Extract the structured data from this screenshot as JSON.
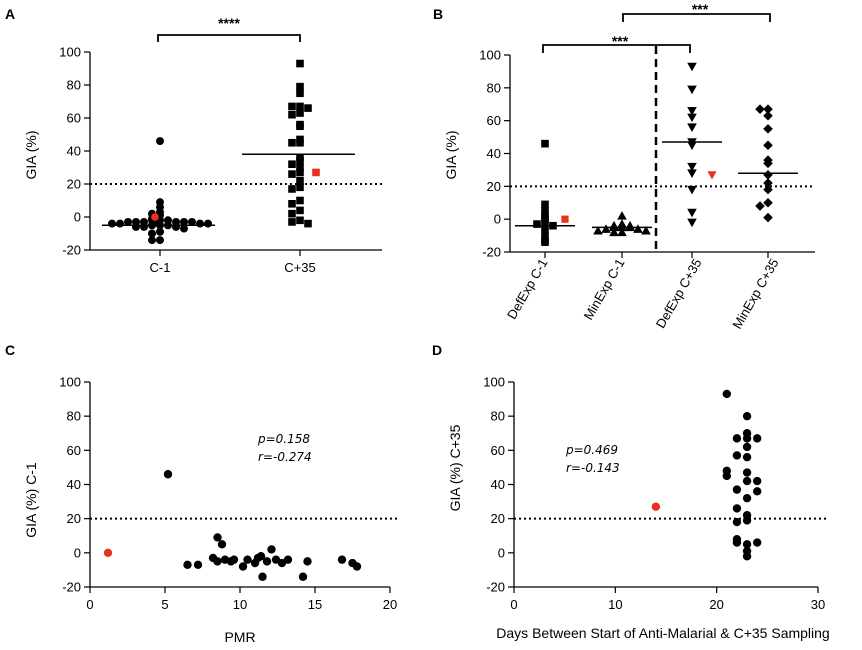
{
  "chart_data": [
    {
      "panel": "A",
      "type": "scatter",
      "ylabel": "GIA (%)",
      "ylim": [
        -20,
        100
      ],
      "yticks": [
        "100",
        "80",
        "60",
        "40",
        "20",
        "0",
        "-20"
      ],
      "categories": [
        "C-1",
        "C+35"
      ],
      "threshold": 20,
      "significance": [
        "****"
      ],
      "series": [
        {
          "name": "C-1",
          "marker": "circle",
          "values": [
            46,
            9,
            6,
            3,
            2,
            1,
            -1,
            -2,
            -2,
            -2,
            -3,
            -3,
            -3,
            -3,
            -3,
            -3,
            -4,
            -4,
            -4,
            -4,
            -4,
            -5,
            -5,
            -5,
            -6,
            -6,
            -6,
            -7,
            -9,
            -10,
            -14,
            -14
          ],
          "highlight": 0,
          "median": -5
        },
        {
          "name": "C+35",
          "marker": "square",
          "values": [
            93,
            79,
            75,
            67,
            67,
            66,
            63,
            62,
            56,
            55,
            47,
            45,
            45,
            36,
            34,
            32,
            30,
            27,
            26,
            22,
            18,
            17,
            10,
            8,
            4,
            2,
            -2,
            -3,
            -4
          ],
          "highlight": 27,
          "median": 38
        }
      ]
    },
    {
      "panel": "B",
      "type": "scatter",
      "ylabel": "GIA (%)",
      "ylim": [
        -20,
        100
      ],
      "yticks": [
        "100",
        "80",
        "60",
        "40",
        "20",
        "0",
        "-20"
      ],
      "categories": [
        "DefExp C-1",
        "MinExp C-1",
        "DefExp C+35",
        "MinExp C+35"
      ],
      "threshold": 20,
      "significance": [
        "***",
        "***"
      ],
      "series": [
        {
          "name": "DefExp C-1",
          "marker": "square",
          "values": [
            46,
            9,
            5,
            2,
            0,
            -2,
            -3,
            -4,
            -6,
            -10,
            -13,
            -14
          ],
          "highlight": 0,
          "median": -4
        },
        {
          "name": "MinExp C-1",
          "marker": "triangle-up",
          "values": [
            2,
            -3,
            -4,
            -4,
            -5,
            -5,
            -5,
            -6,
            -6,
            -7,
            -7,
            -8,
            -8
          ],
          "median": -5
        },
        {
          "name": "DefExp C+35",
          "marker": "triangle-down",
          "values": [
            93,
            79,
            66,
            62,
            56,
            47,
            45,
            32,
            28,
            18,
            4,
            -2
          ],
          "highlight": 27,
          "median": 47
        },
        {
          "name": "MinExp C+35",
          "marker": "diamond",
          "values": [
            67,
            67,
            63,
            55,
            45,
            36,
            34,
            27,
            22,
            18,
            10,
            8,
            1
          ],
          "median": 28
        }
      ]
    },
    {
      "panel": "C",
      "type": "scatter",
      "xlabel": "PMR",
      "ylabel": "GIA (%) C-1",
      "xlim": [
        0,
        20
      ],
      "ylim": [
        -20,
        100
      ],
      "xticks": [
        "0",
        "5",
        "10",
        "15",
        "20"
      ],
      "yticks": [
        "100",
        "80",
        "60",
        "40",
        "20",
        "0",
        "-20"
      ],
      "threshold": 20,
      "annotation": [
        "p=0.158",
        "r=-0.274"
      ],
      "points": [
        [
          5.2,
          46
        ],
        [
          6.5,
          -7
        ],
        [
          7.2,
          -7
        ],
        [
          8.2,
          -3
        ],
        [
          8.5,
          9
        ],
        [
          8.8,
          5
        ],
        [
          8.5,
          -5
        ],
        [
          9.0,
          -4
        ],
        [
          9.4,
          -5
        ],
        [
          9.6,
          -4
        ],
        [
          10.2,
          -8
        ],
        [
          10.5,
          -4
        ],
        [
          11.0,
          -6
        ],
        [
          11.2,
          -3
        ],
        [
          11.5,
          -14
        ],
        [
          11.4,
          -2
        ],
        [
          11.8,
          -5
        ],
        [
          12.1,
          2
        ],
        [
          12.4,
          -4
        ],
        [
          12.8,
          -6
        ],
        [
          13.2,
          -4
        ],
        [
          14.2,
          -14
        ],
        [
          14.5,
          -5
        ],
        [
          16.8,
          -4
        ],
        [
          17.5,
          -6
        ],
        [
          17.8,
          -8
        ]
      ],
      "highlight": [
        1.2,
        0
      ]
    },
    {
      "panel": "D",
      "type": "scatter",
      "xlabel": "Days Between Start of Anti-Malarial & C+35 Sampling",
      "ylabel": "GIA (%) C+35",
      "xlim": [
        0,
        30
      ],
      "ylim": [
        -20,
        100
      ],
      "xticks": [
        "0",
        "10",
        "20",
        "30"
      ],
      "yticks": [
        "100",
        "80",
        "60",
        "40",
        "20",
        "0",
        "-20"
      ],
      "threshold": 20,
      "annotation": [
        "p=0.469",
        "r=-0.143"
      ],
      "points": [
        [
          21,
          93
        ],
        [
          21,
          48
        ],
        [
          21,
          45
        ],
        [
          22,
          67
        ],
        [
          22,
          57
        ],
        [
          22,
          37
        ],
        [
          22,
          26
        ],
        [
          22,
          18
        ],
        [
          22,
          8
        ],
        [
          22,
          6
        ],
        [
          23,
          80
        ],
        [
          23,
          70
        ],
        [
          23,
          67
        ],
        [
          23,
          62
        ],
        [
          23,
          56
        ],
        [
          23,
          47
        ],
        [
          23,
          42
        ],
        [
          23,
          32
        ],
        [
          23,
          22
        ],
        [
          23,
          19
        ],
        [
          23,
          5
        ],
        [
          23,
          1
        ],
        [
          23,
          -2
        ],
        [
          24,
          67
        ],
        [
          24,
          42
        ],
        [
          24,
          36
        ],
        [
          24,
          6
        ]
      ],
      "highlight": [
        14,
        27
      ]
    }
  ],
  "colors": {
    "point": "#000000",
    "highlight": "#e8321e"
  }
}
